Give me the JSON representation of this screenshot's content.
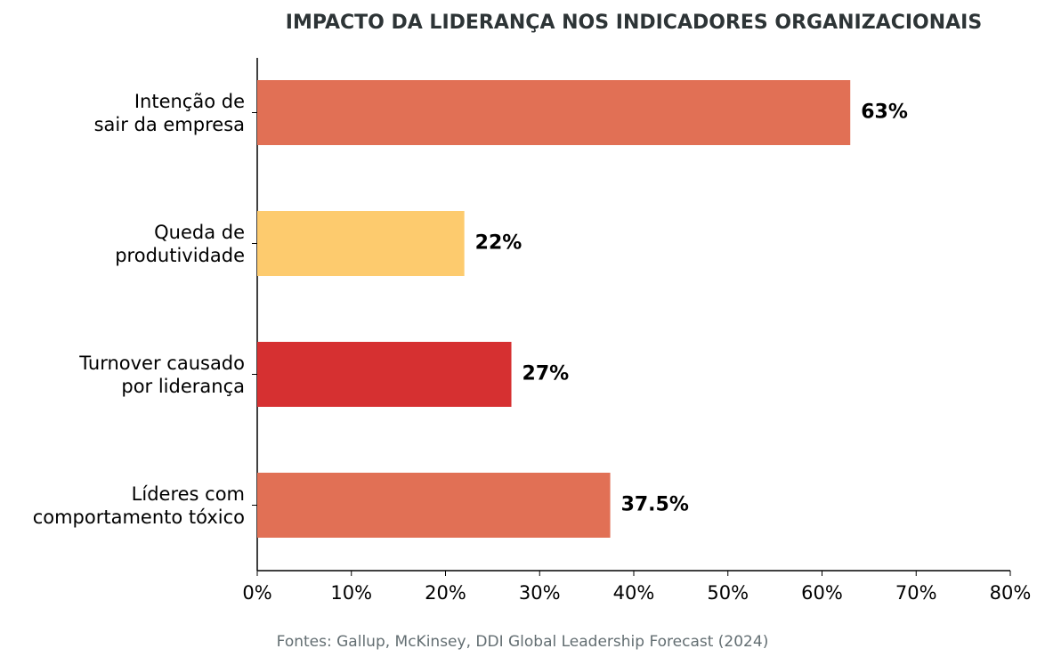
{
  "chart_data": {
    "type": "barh",
    "title": "IMPACTO DA LIDERANÇA NOS INDICADORES ORGANIZACIONAIS",
    "source": "Fontes: Gallup, McKinsey, DDI Global Leadership Forecast (2024)",
    "categories": [
      "Intenção de\nsair da empresa",
      "Queda de\nprodutividade",
      "Turnover causado\npor liderança",
      "Líderes com\ncomportamento tóxico"
    ],
    "values": [
      63,
      22,
      27,
      37.5
    ],
    "value_labels": [
      "63%",
      "22%",
      "27%",
      "37.5%"
    ],
    "colors": [
      "#e17055",
      "#fdcb6e",
      "#d63031",
      "#e17055"
    ],
    "xlim": [
      0,
      80
    ],
    "xticks": [
      {
        "value": 0,
        "label": "0%"
      },
      {
        "value": 10,
        "label": "10%"
      },
      {
        "value": 20,
        "label": "20%"
      },
      {
        "value": 30,
        "label": "30%"
      },
      {
        "value": 40,
        "label": "40%"
      },
      {
        "value": 50,
        "label": "50%"
      },
      {
        "value": 60,
        "label": "60%"
      },
      {
        "value": 70,
        "label": "70%"
      },
      {
        "value": 80,
        "label": "80%"
      }
    ]
  }
}
